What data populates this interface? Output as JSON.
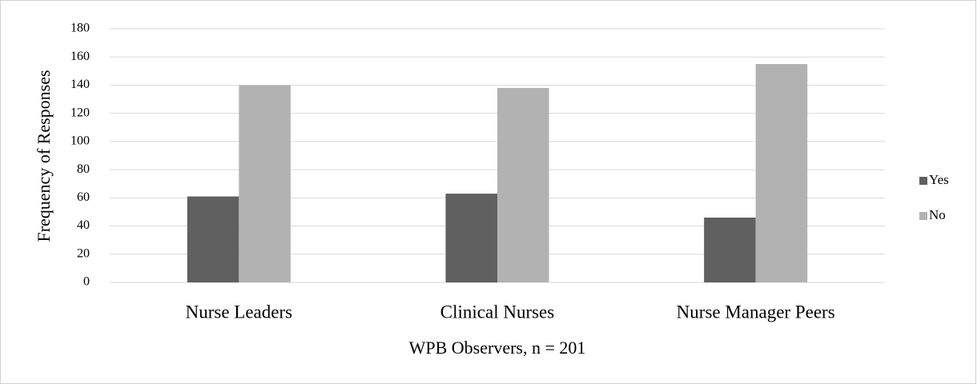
{
  "chart_data": {
    "type": "bar",
    "categories": [
      "Nurse Leaders",
      "Clinical Nurses",
      "Nurse Manager Peers"
    ],
    "series": [
      {
        "name": "Yes",
        "color": "#606060",
        "values": [
          61,
          63,
          46
        ]
      },
      {
        "name": "No",
        "color": "#b2b2b2",
        "values": [
          140,
          138,
          155
        ]
      }
    ],
    "x_label": "WPB Observers, n = 201",
    "y_label": "Frequency of Responses",
    "ylim": [
      0,
      180
    ],
    "yticks": [
      0,
      20,
      40,
      60,
      80,
      100,
      120,
      140,
      160,
      180
    ],
    "grid": true,
    "legend": "right"
  }
}
